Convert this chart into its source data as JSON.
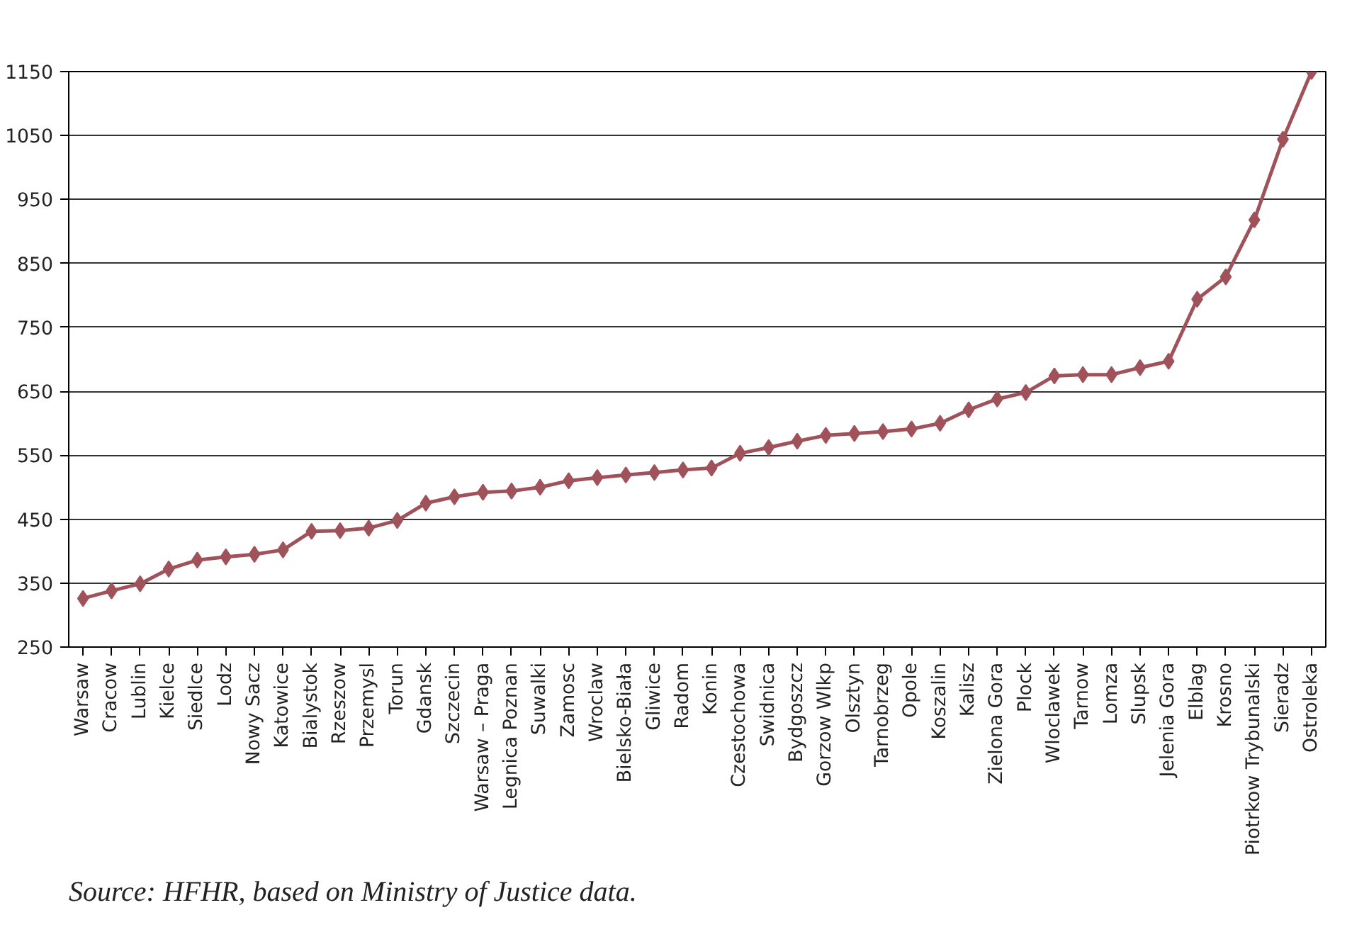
{
  "chart_data": {
    "type": "line",
    "categories": [
      "Warsaw",
      "Cracow",
      "Lublin",
      "Kielce",
      "Siedlce",
      "Lodz",
      "Nowy Sacz",
      "Katowice",
      "Bialystok",
      "Rzeszow",
      "Przemysl",
      "Torun",
      "Gdansk",
      "Szczecin",
      "Warsaw – Praga",
      "Legnica Poznan",
      "Suwalki",
      "Zamosc",
      "Wroclaw",
      "Bielsko-Biała",
      "Gliwice",
      "Radom",
      "Konin",
      "Czestochowa",
      "Swidnica",
      "Bydgoszcz",
      "Gorzow Wlkp",
      "Olsztyn",
      "Tarnobrzeg",
      "Opole",
      "Koszalin",
      "Kalisz",
      "Zielona Gora",
      "Plock",
      "Wloclawek",
      "Tarnow",
      "Lomza",
      "Slupsk",
      "Jelenia Gora",
      "Elblag",
      "Krosno",
      "Piotrkow Trybunalski",
      "Sieradz",
      "Ostroleka"
    ],
    "series": [
      {
        "color": "#a0525a",
        "values": [
          326,
          338,
          349,
          372,
          386,
          391,
          395,
          402,
          431,
          432,
          436,
          448,
          475,
          485,
          492,
          494,
          500,
          510,
          515,
          519,
          523,
          527,
          530,
          553,
          562,
          572,
          581,
          584,
          587,
          591,
          600,
          621,
          638,
          648,
          674,
          676,
          676,
          687,
          697,
          794,
          829,
          918,
          1044,
          1150
        ]
      }
    ],
    "ylim": [
      250,
      1150
    ],
    "yticks": [
      250,
      350,
      450,
      550,
      650,
      750,
      850,
      950,
      1050,
      1150
    ],
    "grid": "y",
    "marker": "diamond",
    "line_style": "solid",
    "annotations": [
      "Source:  HFHR, based on Ministry of Justice data."
    ]
  }
}
